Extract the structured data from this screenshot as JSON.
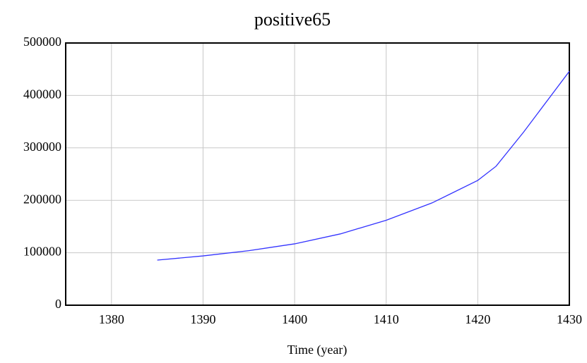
{
  "chart_data": {
    "type": "line",
    "title": "positive65",
    "xlabel": "Time (year)",
    "x": [
      1385,
      1390,
      1395,
      1400,
      1405,
      1410,
      1415,
      1420,
      1422,
      1425,
      1430
    ],
    "series": [
      {
        "color": "#3333ff",
        "values": [
          86000,
          94000,
          104000,
          117000,
          136000,
          162000,
          195000,
          238000,
          265000,
          330000,
          446000
        ]
      }
    ],
    "xlim": [
      1375,
      1430
    ],
    "xticks": [
      1380,
      1390,
      1400,
      1410,
      1420,
      1430
    ],
    "ylim": [
      0,
      500000
    ],
    "yticks": [
      0,
      100000,
      200000,
      300000,
      400000,
      500000
    ],
    "grid": true
  }
}
